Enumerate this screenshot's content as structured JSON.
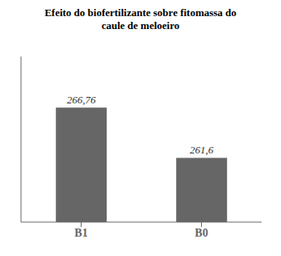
{
  "chart_data": {
    "type": "bar",
    "title": "Efeito do biofertilizante sobre fitomassa do\ncaule de meloeiro",
    "categories": [
      "B1",
      "B0"
    ],
    "values": [
      266.76,
      261.6
    ],
    "value_labels": [
      "266,76",
      "261,6"
    ],
    "color": "#666666",
    "ylim": [
      255,
      272
    ],
    "data_labels": true,
    "tick_labels": "x",
    "grid": false
  }
}
